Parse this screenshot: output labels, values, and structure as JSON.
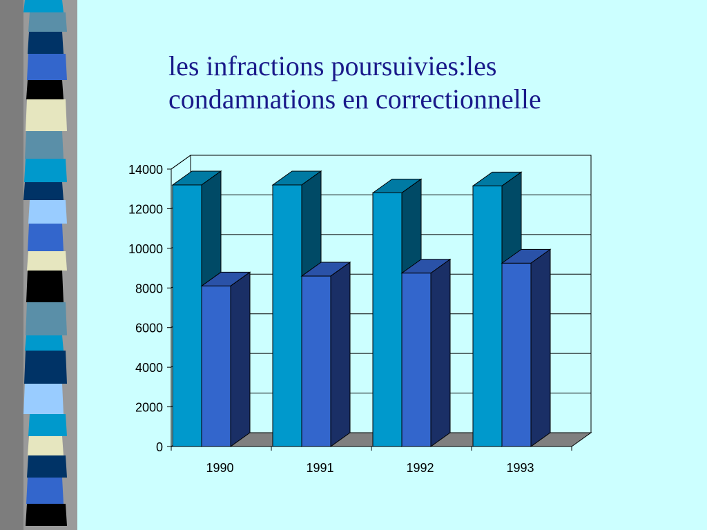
{
  "slide": {
    "title_line1": "les infractions poursuivies:les",
    "title_line2": "condamnations en correctionnelle"
  },
  "colors": {
    "background": "#ccffff",
    "series1_front": "#0099cc",
    "series1_side": "#004a66",
    "series1_top": "#007aa3",
    "series2_front": "#3366cc",
    "series2_side": "#1a2f66",
    "series2_top": "#2a52a8",
    "floor": "#808080",
    "title": "#1a1a8a"
  },
  "chart_data": {
    "type": "bar",
    "style": "3d-clustered",
    "title": "",
    "xlabel": "",
    "ylabel": "",
    "categories": [
      "1990",
      "1991",
      "1992",
      "1993"
    ],
    "series": [
      {
        "values": [
          13200,
          13200,
          12800,
          13150
        ]
      },
      {
        "values": [
          8100,
          8600,
          8750,
          9250
        ]
      }
    ],
    "ylim": [
      0,
      14000
    ],
    "yticks": [
      0,
      2000,
      4000,
      6000,
      8000,
      10000,
      12000,
      14000
    ],
    "grid": true,
    "legend": "none"
  }
}
